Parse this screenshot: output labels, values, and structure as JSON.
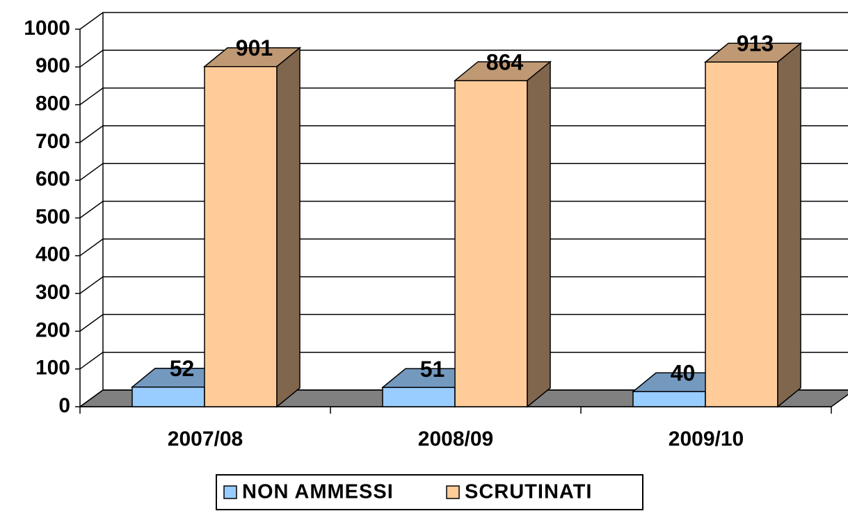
{
  "chart_data": {
    "type": "bar3d",
    "categories": [
      "2007/08",
      "2008/09",
      "2009/10"
    ],
    "series": [
      {
        "name": "NON AMMESSI",
        "color": "#99ccff",
        "values": [
          52,
          51,
          40
        ]
      },
      {
        "name": "SCRUTINATI",
        "color": "#ffcc99",
        "values": [
          901,
          864,
          913
        ]
      }
    ],
    "ylim": [
      0,
      1000
    ],
    "yticks": [
      0,
      100,
      200,
      300,
      400,
      500,
      600,
      700,
      800,
      900,
      1000
    ],
    "grid": true,
    "legend": "bottom"
  }
}
